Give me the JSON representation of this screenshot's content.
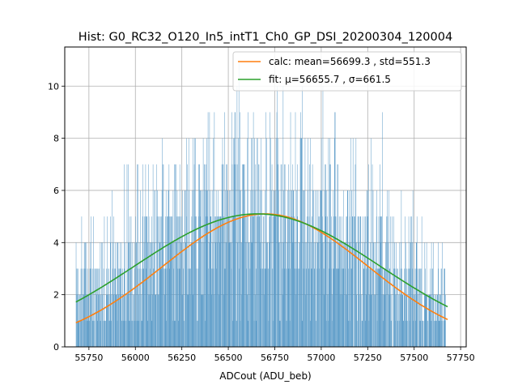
{
  "chart_data": {
    "type": "histogram",
    "title": "Hist: G0_RC32_O120_In5_intT1_Ch0_GP_DSI_20200304_120004",
    "xlabel": "ADCout (ADU_beb)",
    "ylabel": "",
    "xlim": [
      55620,
      57780
    ],
    "ylim": [
      0,
      11.5
    ],
    "xticks": [
      55750,
      56000,
      56250,
      56500,
      56750,
      57000,
      57250,
      57500,
      57750
    ],
    "yticks": [
      0,
      2,
      4,
      6,
      8,
      10
    ],
    "grid": true,
    "legend_position": "top-right",
    "histogram": {
      "name": "",
      "color": "#5b9bc8",
      "range": [
        55680,
        57670
      ],
      "bin_width": 2,
      "seed": 20200304,
      "peak_counts": 11
    },
    "series": [
      {
        "name": "calc: mean=56699.3 , std=551.3",
        "color": "#ff7f0e",
        "mean": 56699.3,
        "std": 551.3,
        "amplitude": 5.1,
        "x_range": [
          55680,
          57680
        ]
      },
      {
        "name": "fit: μ=56655.7 , σ=661.5",
        "color": "#2ca02c",
        "mean": 56655.7,
        "std": 661.5,
        "amplitude": 5.1,
        "x_range": [
          55680,
          57680
        ]
      }
    ]
  }
}
